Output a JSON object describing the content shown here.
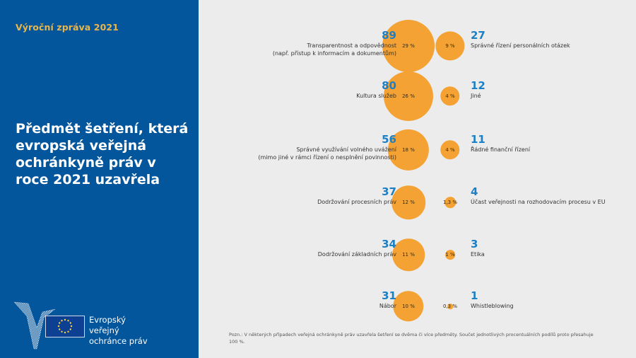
{
  "sidebar": {
    "report_label": "Výroční zpráva 2021",
    "title": "Předmět šetření, která evropská veřejná ochránkyně práv v roce 2021 uzavřela",
    "logo": {
      "line1": "Evropský veřejný",
      "line2": "ochránce práv",
      "icons": [
        "ombudsman-bird-icon",
        "eu-flag-icon"
      ]
    }
  },
  "colors": {
    "panel": "#03569b",
    "accent_gold": "#e8b64c",
    "bubble": "#f3a233",
    "value_blue": "#1d7fc4",
    "background": "#ececec"
  },
  "chart_data": {
    "type": "bubble",
    "title": "Předmět šetření, která evropská veřejná ochránkyně práv v roce 2021 uzavřela",
    "left_column": [
      {
        "count": 89,
        "percent": 29,
        "percent_label": "29 %",
        "label_lines": [
          "Transparentnost a odpovědnost",
          "(např. přístup k informacím a dokumentům)"
        ]
      },
      {
        "count": 80,
        "percent": 26,
        "percent_label": "26 %",
        "label_lines": [
          "Kultura služeb"
        ]
      },
      {
        "count": 56,
        "percent": 18,
        "percent_label": "18 %",
        "label_lines": [
          "Správné využívání volného uvážení",
          "(mimo jiné v rámci řízení o nesplnění povinnosti)"
        ]
      },
      {
        "count": 37,
        "percent": 12,
        "percent_label": "12 %",
        "label_lines": [
          "Dodržování procesních práv"
        ]
      },
      {
        "count": 34,
        "percent": 11,
        "percent_label": "11 %",
        "label_lines": [
          "Dodržování základních práv"
        ]
      },
      {
        "count": 31,
        "percent": 10,
        "percent_label": "10 %",
        "label_lines": [
          "Nábor"
        ]
      }
    ],
    "right_column": [
      {
        "count": 27,
        "percent": 9,
        "percent_label": "9 %",
        "label_lines": [
          "Správné řízení personálních otázek"
        ]
      },
      {
        "count": 12,
        "percent": 4,
        "percent_label": "4 %",
        "label_lines": [
          "Jiné"
        ]
      },
      {
        "count": 11,
        "percent": 4,
        "percent_label": "4 %",
        "label_lines": [
          "Řádné finanční řízení"
        ]
      },
      {
        "count": 4,
        "percent": 1.3,
        "percent_label": "1,3 %",
        "label_lines": [
          "Účast veřejnosti na rozhodovacím procesu v EU"
        ]
      },
      {
        "count": 3,
        "percent": 1,
        "percent_label": "1 %",
        "label_lines": [
          "Etika"
        ]
      },
      {
        "count": 1,
        "percent": 0.3,
        "percent_label": "0,3 %",
        "label_lines": [
          "Whistleblowing"
        ]
      }
    ]
  },
  "note": "Pozn.: V některých případech veřejná ochránkyně práv uzavřela šetření se dvěma či více předměty. Součet jednotlivých procentuálních podílů proto přesahuje 100 %."
}
